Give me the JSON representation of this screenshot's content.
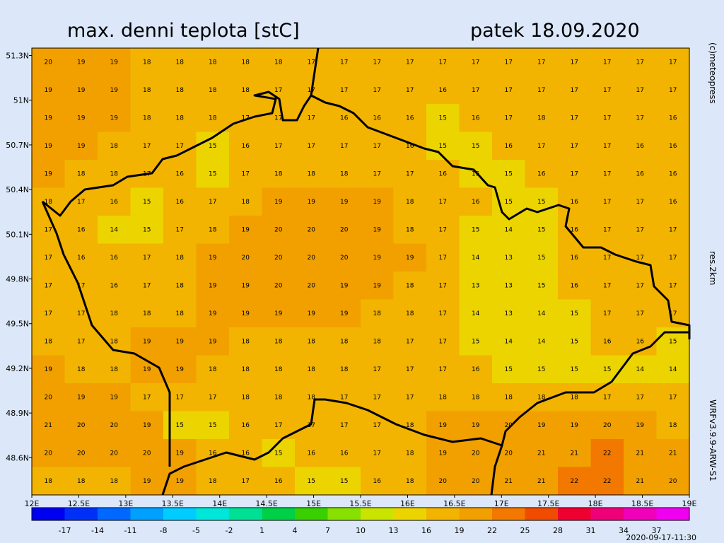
{
  "header": {
    "title": "max. denni teplota [stC]",
    "date": "patek 18.09.2020"
  },
  "side": {
    "copyright": "(c)meteopress",
    "resolution": "res.2km",
    "model": "WRFv3.9.9-ARW-S1",
    "run": "2020-09-17-11:30"
  },
  "map": {
    "xlim": [
      12,
      19
    ],
    "ylim": [
      48.35,
      51.35
    ],
    "xticks": [
      {
        "value": 12,
        "label": "12E"
      },
      {
        "value": 12.5,
        "label": "12.5E"
      },
      {
        "value": 13,
        "label": "13E"
      },
      {
        "value": 13.5,
        "label": "13.5E"
      },
      {
        "value": 14,
        "label": "14E"
      },
      {
        "value": 14.5,
        "label": "14.5E"
      },
      {
        "value": 15,
        "label": "15E"
      },
      {
        "value": 15.5,
        "label": "15.5E"
      },
      {
        "value": 16,
        "label": "16E"
      },
      {
        "value": 16.5,
        "label": "16.5E"
      },
      {
        "value": 17,
        "label": "17E"
      },
      {
        "value": 17.5,
        "label": "17.5E"
      },
      {
        "value": 18,
        "label": "18E"
      },
      {
        "value": 18.5,
        "label": "18.5E"
      },
      {
        "value": 19,
        "label": "19E"
      }
    ],
    "yticks": [
      {
        "value": 51.3,
        "label": "51.3N"
      },
      {
        "value": 51,
        "label": "51N"
      },
      {
        "value": 50.7,
        "label": "50.7N"
      },
      {
        "value": 50.4,
        "label": "50.4N"
      },
      {
        "value": 50.1,
        "label": "50.1N"
      },
      {
        "value": 49.8,
        "label": "49.8N"
      },
      {
        "value": 49.5,
        "label": "49.5N"
      },
      {
        "value": 49.2,
        "label": "49.2N"
      },
      {
        "value": 48.9,
        "label": "48.9N"
      },
      {
        "value": 48.6,
        "label": "48.6N"
      }
    ],
    "grid": [
      [
        20,
        19,
        19,
        18,
        18,
        18,
        18,
        18,
        17,
        17,
        17,
        17,
        17,
        17,
        17,
        17,
        17,
        17,
        17,
        17
      ],
      [
        19,
        19,
        19,
        18,
        18,
        18,
        18,
        17,
        17,
        17,
        17,
        17,
        16,
        17,
        17,
        17,
        17,
        17,
        17,
        17
      ],
      [
        19,
        19,
        19,
        18,
        18,
        18,
        17,
        17,
        17,
        16,
        16,
        16,
        15,
        16,
        17,
        18,
        17,
        17,
        17,
        16
      ],
      [
        19,
        19,
        18,
        17,
        17,
        15,
        16,
        17,
        17,
        17,
        17,
        16,
        15,
        15,
        16,
        17,
        17,
        17,
        16,
        16
      ],
      [
        19,
        18,
        18,
        17,
        16,
        15,
        17,
        18,
        18,
        18,
        17,
        17,
        16,
        15,
        15,
        16,
        17,
        17,
        16,
        16
      ],
      [
        18,
        17,
        16,
        15,
        16,
        17,
        18,
        19,
        19,
        19,
        19,
        18,
        17,
        16,
        15,
        15,
        16,
        17,
        17,
        16
      ],
      [
        17,
        16,
        14,
        15,
        17,
        18,
        19,
        20,
        20,
        20,
        19,
        18,
        17,
        15,
        14,
        15,
        16,
        17,
        17,
        17
      ],
      [
        17,
        16,
        16,
        17,
        18,
        19,
        20,
        20,
        20,
        20,
        19,
        19,
        17,
        14,
        13,
        15,
        16,
        17,
        17,
        17
      ],
      [
        17,
        17,
        16,
        17,
        18,
        19,
        19,
        20,
        20,
        19,
        19,
        18,
        17,
        13,
        13,
        15,
        16,
        17,
        17,
        17
      ],
      [
        17,
        17,
        18,
        18,
        18,
        19,
        19,
        19,
        19,
        19,
        18,
        18,
        17,
        14,
        13,
        14,
        15,
        17,
        17,
        17
      ],
      [
        18,
        17,
        18,
        19,
        19,
        19,
        18,
        18,
        18,
        18,
        18,
        17,
        17,
        15,
        14,
        14,
        15,
        16,
        16,
        15
      ],
      [
        19,
        18,
        18,
        19,
        19,
        18,
        18,
        18,
        18,
        18,
        17,
        17,
        17,
        16,
        15,
        15,
        15,
        15,
        14,
        14
      ],
      [
        20,
        19,
        19,
        17,
        17,
        17,
        18,
        18,
        18,
        17,
        17,
        17,
        18,
        18,
        18,
        18,
        18,
        17,
        17,
        17
      ],
      [
        21,
        20,
        20,
        19,
        15,
        15,
        16,
        17,
        17,
        17,
        17,
        18,
        19,
        19,
        20,
        19,
        19,
        20,
        19,
        18
      ],
      [
        20,
        20,
        20,
        20,
        19,
        16,
        16,
        15,
        16,
        16,
        17,
        18,
        19,
        20,
        20,
        21,
        21,
        22,
        21,
        21
      ],
      [
        18,
        18,
        18,
        19,
        19,
        18,
        17,
        16,
        15,
        15,
        16,
        18,
        20,
        20,
        21,
        21,
        22,
        22,
        21,
        20
      ]
    ]
  },
  "colorbar": {
    "lim": [
      -20,
      40
    ],
    "colors": [
      "#0000f0",
      "#0030f8",
      "#0068ff",
      "#00a0ff",
      "#00ccff",
      "#00e6d8",
      "#00e094",
      "#00d048",
      "#38d000",
      "#88e000",
      "#c8e400",
      "#ecd400",
      "#f2b400",
      "#f2a000",
      "#f27800",
      "#f04c00",
      "#f00030",
      "#f00078",
      "#f000b8",
      "#f000f0"
    ],
    "ticks": [
      -17,
      -14,
      -11,
      -8,
      -5,
      -2,
      1,
      4,
      7,
      10,
      13,
      16,
      19,
      22,
      25,
      28,
      31,
      34,
      37
    ]
  }
}
